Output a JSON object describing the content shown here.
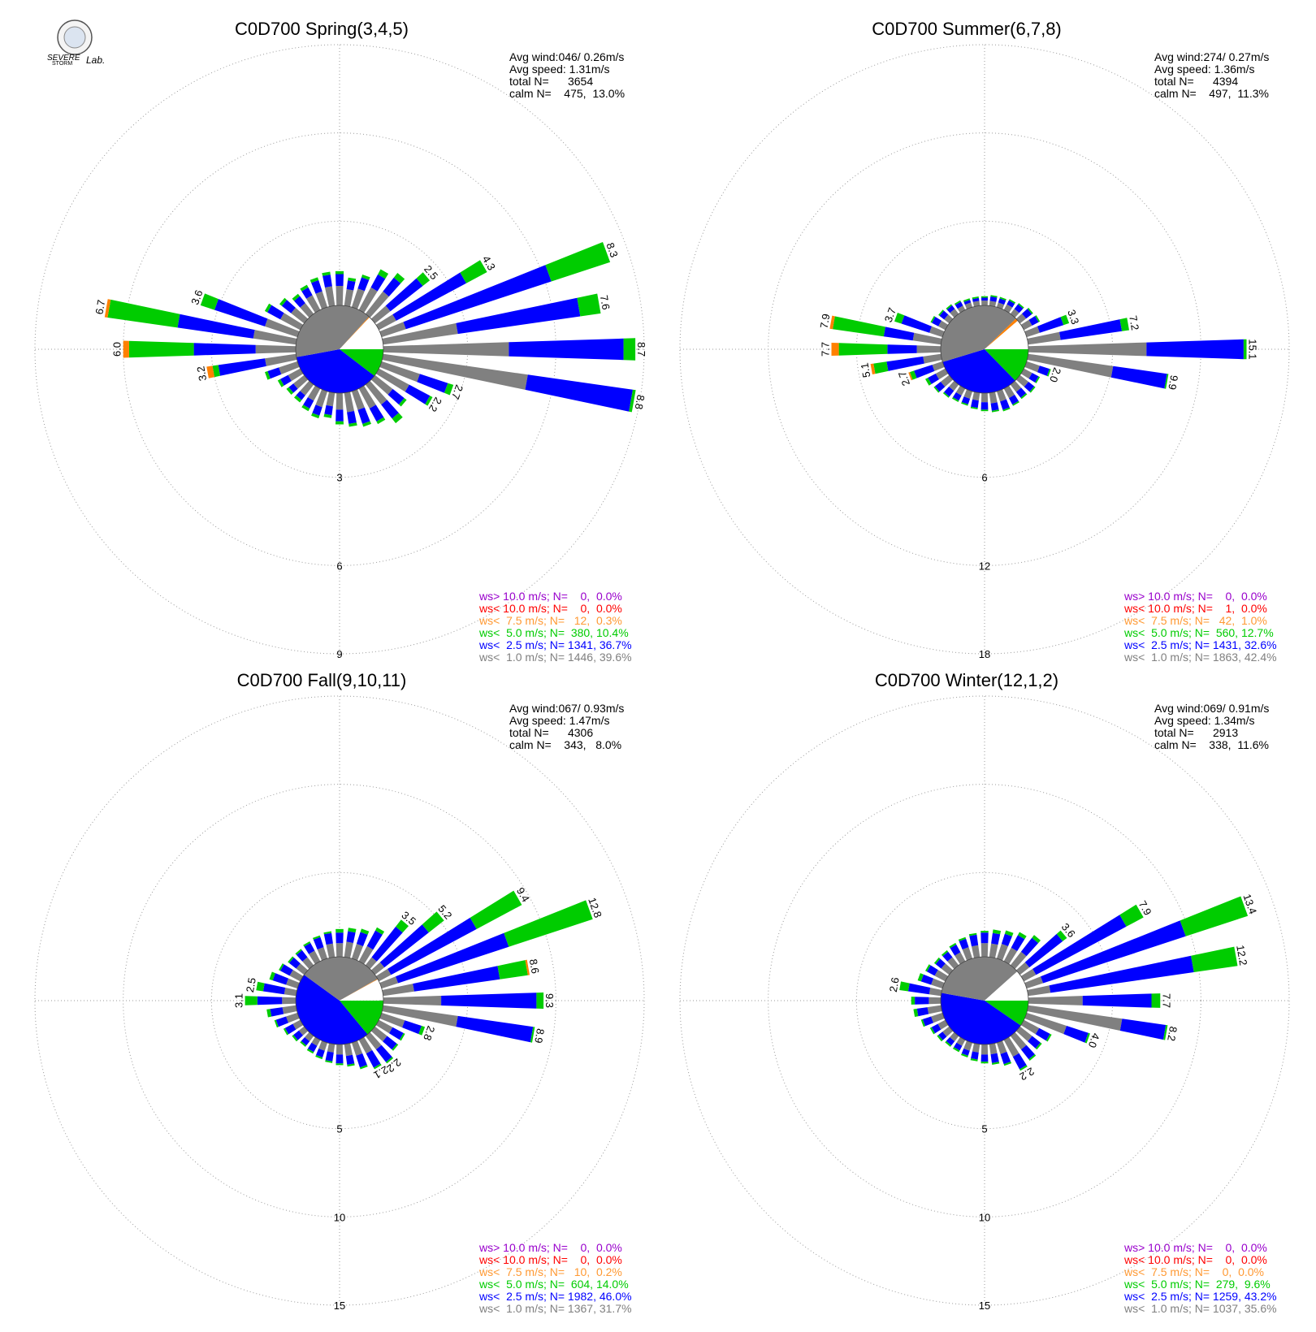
{
  "logo_text": [
    "SEVERE",
    "STORM",
    "Lab."
  ],
  "chart_data": [
    {
      "type": "windrose",
      "title": "C0D700 Spring(3,4,5)",
      "stats": [
        "Avg wind:046/ 0.26m/s",
        "Avg speed: 1.31m/s",
        "total N=      3654"
      ],
      "calm": {
        "label": "calm N=    475,  ",
        "percent": 13.0,
        "percent_label": "13.0%"
      },
      "rlim": [
        0,
        9
      ],
      "rticks": [
        3,
        6,
        9
      ],
      "series": [
        {
          "color": "#808080",
          "values": [
            0.8,
            0.7,
            0.8,
            1.0,
            1.1,
            0.8,
            0.8,
            1.0,
            2.7,
            4.4,
            5.1,
            1.5,
            1.3,
            0.9,
            1.0,
            0.9,
            0.8,
            0.8,
            0.7,
            0.6,
            0.7,
            0.6,
            0.6,
            0.6,
            0.6,
            0.8,
            1.2,
            1.5,
            1.6,
            1.3,
            0.9,
            0.7,
            0.6,
            0.7,
            0.7,
            0.8
          ]
        },
        {
          "color": "#0000ff",
          "values": [
            0.4,
            0.3,
            0.4,
            0.5,
            0.6,
            1.4,
            2.7,
            5.2,
            4.2,
            3.9,
            3.6,
            1.0,
            0.8,
            0.5,
            0.6,
            0.5,
            0.5,
            0.4,
            0.4,
            0.3,
            0.3,
            0.3,
            0.2,
            0.2,
            0.3,
            0.4,
            1.6,
            2.1,
            2.6,
            1.8,
            0.5,
            0.4,
            0.3,
            0.3,
            0.4,
            0.4
          ]
        },
        {
          "color": "#00cc00",
          "values": [
            0.1,
            0.1,
            0.1,
            0.2,
            0.2,
            0.3,
            0.8,
            2.1,
            0.7,
            0.4,
            0.1,
            0.2,
            0.1,
            0.1,
            0.2,
            0.1,
            0.1,
            0.1,
            0.1,
            0.1,
            0.1,
            0.1,
            0.1,
            0.1,
            0.1,
            0.1,
            0.2,
            2.2,
            2.4,
            0.5,
            0.1,
            0.1,
            0.1,
            0.1,
            0.1,
            0.1
          ]
        },
        {
          "color": "#ff8000",
          "values": [
            0,
            0,
            0,
            0,
            0,
            0,
            0,
            0,
            0,
            0,
            0,
            0,
            0,
            0,
            0,
            0,
            0,
            0,
            0,
            0,
            0,
            0,
            0,
            0,
            0,
            0,
            0.2,
            0.2,
            0.1,
            0,
            0,
            0,
            0,
            0,
            0,
            0
          ]
        }
      ],
      "total_labels": [
        null,
        null,
        null,
        null,
        null,
        "2.5",
        "4.3",
        "8.3",
        "7.6",
        "8.7",
        "8.8",
        "2.7",
        "2.2",
        null,
        null,
        null,
        null,
        null,
        null,
        null,
        null,
        null,
        null,
        null,
        null,
        null,
        "3.2",
        "6.0",
        "6.7",
        "3.6",
        null,
        null,
        null,
        null,
        null,
        null
      ],
      "legend": [
        {
          "label": "ws> 10.0 m/s; N=    0,  ",
          "percent": 0,
          "percent_label": "0.0%",
          "color": "#9900cc"
        },
        {
          "label": "ws< 10.0 m/s; N=    0,  ",
          "percent": 0,
          "percent_label": "0.0%",
          "color": "#ff0000"
        },
        {
          "label": "ws<  7.5 m/s; N=   12,  ",
          "percent": 0.3,
          "percent_label": "0.3%",
          "color": "#ff9933"
        },
        {
          "label": "ws<  5.0 m/s; N=  380, ",
          "percent": 10.4,
          "percent_label": "10.4%",
          "color": "#00cc00"
        },
        {
          "label": "ws<  2.5 m/s; N= 1341, ",
          "percent": 36.7,
          "percent_label": "36.7%",
          "color": "#0000ff"
        },
        {
          "label": "ws<  1.0 m/s; N= 1446, ",
          "percent": 39.6,
          "percent_label": "39.6%",
          "color": "#808080"
        }
      ]
    },
    {
      "type": "windrose",
      "title": "C0D700 Summer(6,7,8)",
      "stats": [
        "Avg wind:274/ 0.27m/s",
        "Avg speed: 1.36m/s",
        "total N=      4394"
      ],
      "calm": {
        "label": "calm N=    497,  ",
        "percent": 11.3,
        "percent_label": "11.3%"
      },
      "rlim": [
        0,
        18
      ],
      "rticks": [
        6,
        12,
        18
      ],
      "series": [
        {
          "color": "#808080",
          "values": [
            0.6,
            0.6,
            0.6,
            0.7,
            0.7,
            0.8,
            0.9,
            1.2,
            2.5,
            8.3,
            6.1,
            1.2,
            0.9,
            1.0,
            0.9,
            1.0,
            1.0,
            1.0,
            0.9,
            0.8,
            0.8,
            0.8,
            0.8,
            1.0,
            1.0,
            1.0,
            1.5,
            1.9,
            2.2,
            1.2,
            0.8,
            0.7,
            0.7,
            0.6,
            0.6,
            0.6
          ]
        },
        {
          "color": "#0000ff",
          "values": [
            0.2,
            0.3,
            0.3,
            0.3,
            0.4,
            0.5,
            0.5,
            1.7,
            4.2,
            6.6,
            3.7,
            0.7,
            0.5,
            0.5,
            0.5,
            0.5,
            0.6,
            0.5,
            0.5,
            0.5,
            0.4,
            0.4,
            0.5,
            0.5,
            0.6,
            1.3,
            2.5,
            2.0,
            2.0,
            2.0,
            0.5,
            0.4,
            0.3,
            0.3,
            0.2,
            0.2
          ]
        },
        {
          "color": "#00cc00",
          "values": [
            0.1,
            0.1,
            0.1,
            0.1,
            0.1,
            0.1,
            0.1,
            0.4,
            0.5,
            0.2,
            0.1,
            0.1,
            0.1,
            0.1,
            0.1,
            0.1,
            0.1,
            0.1,
            0.1,
            0.1,
            0.1,
            0.1,
            0.1,
            0.1,
            0.2,
            0.3,
            0.9,
            3.3,
            3.5,
            0.5,
            0.1,
            0.1,
            0.1,
            0.1,
            0.1,
            0.1
          ]
        },
        {
          "color": "#ff8000",
          "values": [
            0,
            0,
            0,
            0,
            0,
            0,
            0,
            0,
            0,
            0,
            0,
            0,
            0,
            0,
            0,
            0,
            0,
            0,
            0,
            0,
            0,
            0,
            0,
            0,
            0,
            0.1,
            0.2,
            0.5,
            0.2,
            0,
            0,
            0,
            0,
            0,
            0,
            0
          ]
        }
      ],
      "total_labels": [
        null,
        null,
        null,
        null,
        null,
        null,
        null,
        "3.3",
        "7.2",
        "15.1",
        "9.9",
        "2.0",
        null,
        null,
        null,
        null,
        null,
        null,
        null,
        null,
        null,
        null,
        null,
        null,
        null,
        "2.7",
        "5.1",
        "7.7",
        "7.9",
        "3.7",
        null,
        null,
        null,
        null,
        null,
        null
      ],
      "legend": [
        {
          "label": "ws> 10.0 m/s; N=    0,  ",
          "percent": 0,
          "percent_label": "0.0%",
          "color": "#9900cc"
        },
        {
          "label": "ws< 10.0 m/s; N=    1,  ",
          "percent": 0,
          "percent_label": "0.0%",
          "color": "#ff0000"
        },
        {
          "label": "ws<  7.5 m/s; N=   42,  ",
          "percent": 1.0,
          "percent_label": "1.0%",
          "color": "#ff9933"
        },
        {
          "label": "ws<  5.0 m/s; N=  560, ",
          "percent": 12.7,
          "percent_label": "12.7%",
          "color": "#00cc00"
        },
        {
          "label": "ws<  2.5 m/s; N= 1431, ",
          "percent": 32.6,
          "percent_label": "32.6%",
          "color": "#0000ff"
        },
        {
          "label": "ws<  1.0 m/s; N= 1863, ",
          "percent": 42.4,
          "percent_label": "42.4%",
          "color": "#808080"
        }
      ]
    },
    {
      "type": "windrose",
      "title": "C0D700 Fall(9,10,11)",
      "stats": [
        "Avg wind:067/ 0.93m/s",
        "Avg speed: 1.47m/s",
        "total N=      4306"
      ],
      "calm": {
        "label": "calm N=    343,   ",
        "percent": 8.0,
        "percent_label": "8.0%"
      },
      "rlim": [
        0,
        15
      ],
      "rticks": [
        5,
        10,
        15
      ],
      "series": [
        {
          "color": "#808080",
          "values": [
            1.0,
            1.1,
            1.1,
            1.2,
            0.8,
            0.9,
            1.0,
            1.2,
            2.0,
            3.5,
            4.5,
            1.6,
            1.1,
            1.1,
            1.2,
            1.1,
            1.0,
            0.9,
            0.8,
            0.7,
            0.7,
            0.6,
            0.6,
            0.6,
            0.7,
            0.9,
            1.0,
            1.0,
            0.9,
            0.9,
            0.9,
            0.8,
            0.8,
            0.9,
            0.9,
            1.0
          ]
        },
        {
          "color": "#0000ff",
          "values": [
            0.6,
            0.6,
            0.7,
            1.0,
            2.2,
            3.2,
            5.5,
            6.6,
            4.9,
            5.4,
            4.3,
            1.0,
            0.7,
            0.7,
            0.9,
            0.9,
            0.7,
            0.5,
            0.5,
            0.5,
            0.4,
            0.4,
            0.3,
            0.4,
            0.5,
            0.6,
            0.7,
            1.4,
            1.2,
            0.8,
            0.6,
            0.5,
            0.5,
            0.5,
            0.6,
            0.6
          ]
        },
        {
          "color": "#00cc00",
          "values": [
            0.2,
            0.2,
            0.2,
            0.2,
            0.5,
            1.1,
            2.9,
            5.0,
            1.6,
            0.4,
            0.1,
            0.2,
            0.1,
            0.1,
            0.1,
            0.1,
            0.1,
            0.1,
            0.1,
            0.1,
            0.1,
            0.1,
            0.1,
            0.1,
            0.1,
            0.1,
            0.2,
            0.7,
            0.4,
            0.2,
            0.1,
            0.1,
            0.1,
            0.1,
            0.1,
            0.1
          ]
        },
        {
          "color": "#ff8000",
          "values": [
            0,
            0,
            0,
            0,
            0,
            0,
            0,
            0,
            0.1,
            0,
            0,
            0,
            0,
            0,
            0,
            0,
            0,
            0,
            0,
            0,
            0,
            0,
            0,
            0,
            0,
            0,
            0,
            0,
            0,
            0,
            0,
            0,
            0,
            0,
            0,
            0
          ]
        }
      ],
      "total_labels": [
        null,
        null,
        null,
        null,
        "3.5",
        "5.2",
        "9.4",
        "12.8",
        "8.6",
        "9.3",
        "8.9",
        "2.8",
        null,
        null,
        "2.2",
        "2.1",
        null,
        null,
        null,
        null,
        null,
        null,
        null,
        null,
        null,
        null,
        null,
        "3.1",
        "2.5",
        null,
        null,
        null,
        null,
        null,
        null,
        null
      ],
      "legend": [
        {
          "label": "ws> 10.0 m/s; N=    0,  ",
          "percent": 0,
          "percent_label": "0.0%",
          "color": "#9900cc"
        },
        {
          "label": "ws< 10.0 m/s; N=    0,  ",
          "percent": 0,
          "percent_label": "0.0%",
          "color": "#ff0000"
        },
        {
          "label": "ws<  7.5 m/s; N=   10,  ",
          "percent": 0.2,
          "percent_label": "0.2%",
          "color": "#ff9933"
        },
        {
          "label": "ws<  5.0 m/s; N=  604, ",
          "percent": 14.0,
          "percent_label": "14.0%",
          "color": "#00cc00"
        },
        {
          "label": "ws<  2.5 m/s; N= 1982, ",
          "percent": 46.0,
          "percent_label": "46.0%",
          "color": "#0000ff"
        },
        {
          "label": "ws<  1.0 m/s; N= 1367, ",
          "percent": 31.7,
          "percent_label": "31.7%",
          "color": "#808080"
        }
      ]
    },
    {
      "type": "windrose",
      "title": "C0D700 Winter(12,1,2)",
      "stats": [
        "Avg wind:069/ 0.91m/s",
        "Avg speed: 1.34m/s",
        "total N=      2913"
      ],
      "calm": {
        "label": "calm N=    338,  ",
        "percent": 11.6,
        "percent_label": "11.6%"
      },
      "rlim": [
        0,
        15
      ],
      "rticks": [
        5,
        10,
        15
      ],
      "series": [
        {
          "color": "#808080",
          "values": [
            1.0,
            1.0,
            1.1,
            1.1,
            1.2,
            0.9,
            1.0,
            1.2,
            1.5,
            3.3,
            5.6,
            2.6,
            1.2,
            1.1,
            1.2,
            1.3,
            0.9,
            0.8,
            0.8,
            0.7,
            0.7,
            0.6,
            0.6,
            0.7,
            0.7,
            0.9,
            1.0,
            0.9,
            0.9,
            0.9,
            0.9,
            0.8,
            0.8,
            0.8,
            0.9,
            0.9
          ]
        },
        {
          "color": "#0000ff",
          "values": [
            0.6,
            0.6,
            0.6,
            0.8,
            1.0,
            2.4,
            5.8,
            8.5,
            8.2,
            3.9,
            2.5,
            1.3,
            0.7,
            0.6,
            0.7,
            0.8,
            0.6,
            0.5,
            0.4,
            0.4,
            0.3,
            0.3,
            0.3,
            0.3,
            0.4,
            0.5,
            0.6,
            0.8,
            1.2,
            0.6,
            0.5,
            0.4,
            0.4,
            0.5,
            0.5,
            0.6
          ]
        },
        {
          "color": "#00cc00",
          "values": [
            0.1,
            0.2,
            0.2,
            0.2,
            0.2,
            0.3,
            1.1,
            3.7,
            2.5,
            0.5,
            0.1,
            0.1,
            0.1,
            0.1,
            0.1,
            0.1,
            0.1,
            0.1,
            0.1,
            0.1,
            0.1,
            0.1,
            0.1,
            0.1,
            0.1,
            0.1,
            0.2,
            0.2,
            0.5,
            0.2,
            0.1,
            0.1,
            0.1,
            0.1,
            0.1,
            0.1
          ]
        }
      ],
      "total_labels": [
        null,
        null,
        null,
        null,
        null,
        "3.6",
        "7.9",
        "13.4",
        "12.2",
        "7.7",
        "8.2",
        "4.0",
        null,
        null,
        null,
        "2.2",
        null,
        null,
        null,
        null,
        null,
        null,
        null,
        null,
        null,
        null,
        null,
        null,
        "2.6",
        null,
        null,
        null,
        null,
        null,
        null,
        null
      ],
      "legend": [
        {
          "label": "ws> 10.0 m/s; N=    0,  ",
          "percent": 0,
          "percent_label": "0.0%",
          "color": "#9900cc"
        },
        {
          "label": "ws< 10.0 m/s; N=    0,  ",
          "percent": 0,
          "percent_label": "0.0%",
          "color": "#ff0000"
        },
        {
          "label": "ws<  7.5 m/s; N=    0,  ",
          "percent": 0,
          "percent_label": "0.0%",
          "color": "#ff9933"
        },
        {
          "label": "ws<  5.0 m/s; N=  279,  ",
          "percent": 9.6,
          "percent_label": "9.6%",
          "color": "#00cc00"
        },
        {
          "label": "ws<  2.5 m/s; N= 1259, ",
          "percent": 43.2,
          "percent_label": "43.2%",
          "color": "#0000ff"
        },
        {
          "label": "ws<  1.0 m/s; N= 1037, ",
          "percent": 35.6,
          "percent_label": "35.6%",
          "color": "#808080"
        }
      ]
    }
  ]
}
